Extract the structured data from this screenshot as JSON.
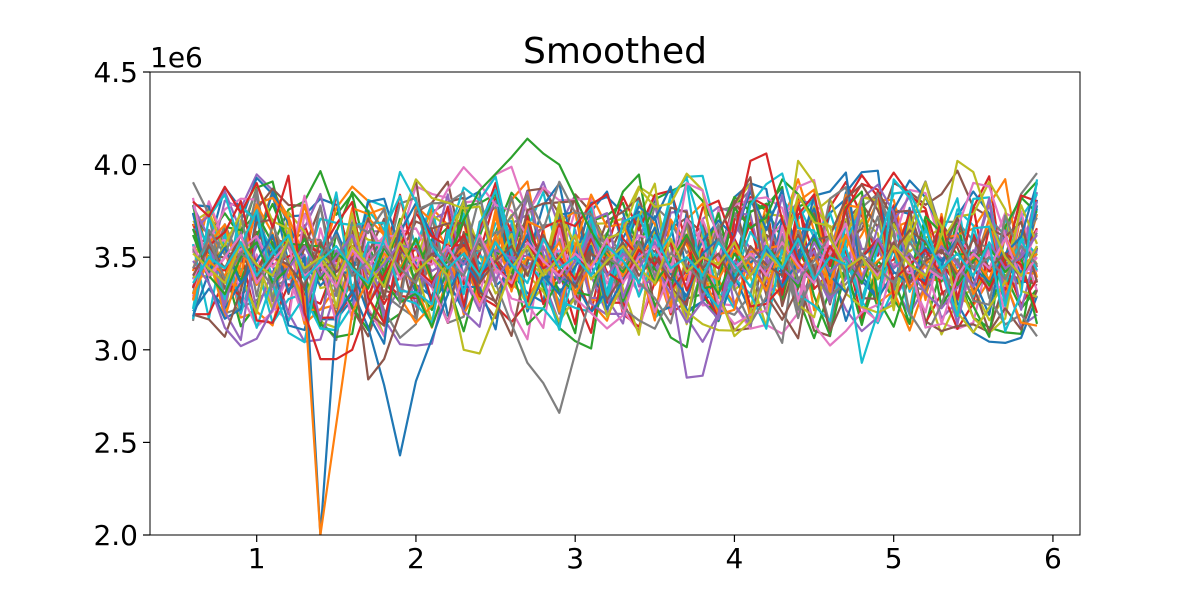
{
  "chart_data": {
    "type": "line",
    "title": "Smoothed",
    "xlabel": "",
    "ylabel": "",
    "y_offset_label": "1e6",
    "xlim": [
      0.33,
      6.17
    ],
    "ylim": [
      2.0,
      4.5
    ],
    "x_ticks": [
      1,
      2,
      3,
      4,
      5,
      6
    ],
    "x_tick_labels": [
      "1",
      "2",
      "3",
      "4",
      "5",
      "6"
    ],
    "y_ticks": [
      2.0,
      2.5,
      3.0,
      3.5,
      4.0,
      4.5
    ],
    "y_tick_labels": [
      "2.0",
      "2.5",
      "3.0",
      "3.5",
      "4.0",
      "4.5"
    ],
    "grid": false,
    "legend": "none",
    "colors": [
      "#1f77b4",
      "#ff7f0e",
      "#2ca02c",
      "#d62728",
      "#9467bd",
      "#8c564b",
      "#e377c2",
      "#7f7f7f",
      "#bcbd22",
      "#17becf"
    ],
    "x": [
      0.6,
      0.7,
      0.8,
      0.9,
      1.0,
      1.1,
      1.2,
      1.3,
      1.4,
      1.5,
      1.6,
      1.7,
      1.8,
      1.9,
      2.0,
      2.1,
      2.2,
      2.3,
      2.4,
      2.5,
      2.6,
      2.7,
      2.8,
      2.9,
      3.0,
      3.1,
      3.2,
      3.3,
      3.4,
      3.5,
      3.6,
      3.7,
      3.8,
      3.9,
      4.0,
      4.1,
      4.2,
      4.3,
      4.4,
      4.5,
      4.6,
      4.7,
      4.8,
      4.9,
      5.0,
      5.1,
      5.2,
      5.3,
      5.4,
      5.5,
      5.6,
      5.7,
      5.8,
      5.9
    ],
    "series_count": 50,
    "band": {
      "center": 3.5,
      "halfwidth": 0.38
    },
    "series": [
      {
        "values": [
          3.18,
          3.42,
          3.55,
          3.36,
          3.48,
          3.62,
          3.31,
          3.5,
          2.0,
          3.18,
          3.32,
          3.12,
          2.81,
          2.43,
          2.83,
          3.06,
          3.3,
          3.48,
          3.36,
          3.58,
          3.44,
          3.62,
          3.4,
          3.3,
          3.45,
          3.56,
          3.22,
          3.38,
          3.5,
          3.66,
          3.41,
          3.29,
          3.52,
          3.6,
          3.38,
          3.47,
          3.55,
          3.34,
          3.48,
          3.62,
          3.4,
          3.31,
          3.5,
          3.58,
          3.42,
          3.36,
          3.55,
          3.48,
          3.6,
          3.44,
          3.37,
          3.52,
          3.61,
          3.9
        ]
      },
      {
        "values": [
          3.3,
          3.48,
          3.4,
          3.58,
          3.35,
          3.5,
          3.44,
          3.28,
          2.0,
          2.6,
          3.2,
          3.38,
          3.52,
          3.44,
          3.6,
          3.36,
          3.48,
          3.55,
          3.4,
          3.62,
          3.34,
          3.5,
          3.45,
          3.58,
          3.3,
          3.46,
          3.52,
          3.4,
          3.56,
          3.35,
          3.48,
          3.6,
          3.42,
          3.38,
          3.54,
          3.46,
          3.32,
          3.58,
          3.44,
          3.5,
          3.36,
          3.62,
          3.4,
          3.48,
          3.55,
          3.33,
          3.46,
          3.58,
          3.42,
          3.5,
          3.38,
          3.6,
          3.45,
          3.52
        ]
      },
      {
        "values": [
          3.62,
          3.4,
          3.3,
          3.5,
          3.58,
          3.36,
          3.44,
          3.6,
          3.38,
          3.52,
          3.46,
          3.33,
          3.55,
          3.42,
          3.6,
          3.38,
          3.48,
          3.7,
          3.86,
          3.95,
          4.04,
          4.14,
          4.06,
          4.0,
          3.82,
          3.64,
          3.5,
          3.42,
          3.58,
          3.36,
          3.48,
          3.62,
          3.44,
          3.3,
          3.52,
          3.4,
          3.56,
          3.46,
          3.34,
          3.6,
          3.42,
          3.5,
          3.36,
          3.58,
          3.44,
          3.52,
          3.4,
          3.62,
          3.35,
          3.48,
          3.56,
          3.42,
          3.5,
          3.14
        ]
      },
      {
        "values": [
          3.8,
          3.72,
          3.88,
          3.74,
          3.9,
          3.66,
          3.94,
          3.2,
          2.95,
          2.95,
          3.0,
          3.24,
          3.4,
          3.56,
          3.44,
          3.36,
          3.52,
          3.62,
          3.4,
          3.48,
          3.34,
          3.58,
          3.44,
          3.5,
          3.38,
          3.6,
          3.42,
          3.36,
          3.54,
          3.46,
          3.58,
          3.32,
          3.5,
          3.44,
          3.62,
          4.02,
          4.06,
          3.7,
          3.48,
          3.36,
          3.56,
          3.42,
          3.5,
          3.6,
          3.38,
          3.46,
          3.54,
          3.4,
          3.58,
          3.44,
          3.32,
          3.52,
          3.46,
          3.2
        ]
      },
      {
        "values": [
          3.48,
          3.36,
          3.12,
          3.02,
          3.06,
          3.22,
          3.44,
          3.56,
          3.4,
          3.5,
          3.62,
          3.38,
          3.46,
          3.58,
          3.42,
          3.34,
          3.54,
          3.46,
          3.6,
          3.38,
          3.5,
          3.44,
          3.56,
          3.36,
          3.48,
          3.62,
          3.4,
          3.52,
          3.44,
          3.58,
          3.36,
          2.85,
          2.86,
          3.2,
          3.48,
          3.4,
          3.56,
          3.44,
          3.36,
          3.58,
          3.42,
          3.5,
          3.38,
          3.6,
          3.44,
          3.52,
          3.4,
          3.56,
          3.46,
          3.34,
          3.58,
          3.44,
          3.5,
          3.62
        ]
      },
      {
        "values": [
          3.4,
          3.56,
          3.44,
          3.62,
          3.38,
          3.5,
          3.46,
          3.34,
          3.58,
          3.42,
          3.5,
          2.84,
          2.95,
          3.2,
          3.4,
          3.52,
          3.44,
          3.6,
          3.36,
          3.48,
          3.56,
          3.4,
          3.62,
          3.44,
          3.34,
          3.52,
          3.46,
          3.58,
          3.4,
          3.5,
          3.38,
          3.6,
          3.44,
          3.52,
          3.36,
          3.56,
          3.46,
          3.4,
          3.62,
          3.44,
          3.1,
          3.3,
          3.5,
          3.42,
          3.58,
          3.36,
          3.48,
          3.54,
          3.4,
          3.6,
          3.44,
          3.52,
          3.38,
          3.56
        ]
      },
      {
        "values": [
          3.56,
          3.4,
          3.5,
          3.62,
          3.36,
          3.48,
          3.58,
          3.4,
          3.46,
          3.34,
          3.54,
          3.44,
          3.6,
          3.38,
          3.5,
          3.46,
          3.56,
          3.4,
          3.62,
          3.44,
          3.36,
          3.58,
          3.48,
          3.4,
          3.52,
          3.44,
          3.6,
          3.36,
          3.5,
          3.56,
          3.42,
          3.9,
          3.86,
          3.6,
          3.44,
          3.52,
          3.4,
          3.58,
          3.46,
          3.36,
          3.62,
          3.44,
          3.5,
          3.4,
          3.56,
          3.48,
          3.12,
          3.14,
          3.4,
          3.52,
          3.44,
          3.6,
          3.38,
          3.5
        ]
      },
      {
        "values": [
          3.44,
          3.6,
          3.38,
          3.52,
          3.46,
          3.34,
          3.58,
          3.42,
          3.5,
          3.62,
          3.4,
          3.48,
          3.56,
          3.44,
          3.36,
          3.58,
          3.48,
          3.4,
          3.6,
          3.36,
          3.14,
          2.93,
          2.82,
          2.66,
          2.98,
          3.3,
          3.5,
          3.44,
          3.58,
          3.4,
          3.52,
          3.46,
          3.36,
          3.6,
          3.42,
          3.5,
          3.44,
          3.56,
          3.38,
          3.48,
          3.62,
          3.4,
          3.52,
          3.44,
          3.36,
          3.58,
          3.46,
          3.4,
          3.6,
          3.44,
          3.5,
          3.38,
          3.56,
          3.46
        ]
      },
      {
        "values": [
          3.52,
          3.44,
          3.36,
          3.58,
          3.46,
          3.4,
          3.6,
          3.44,
          3.5,
          3.38,
          3.56,
          3.46,
          3.34,
          3.58,
          3.42,
          3.5,
          3.4,
          3.0,
          2.98,
          3.2,
          3.44,
          3.56,
          3.4,
          3.5,
          3.62,
          3.38,
          3.48,
          3.56,
          3.44,
          3.36,
          3.6,
          3.42,
          3.5,
          3.46,
          3.58,
          3.4,
          3.52,
          3.44,
          4.02,
          3.9,
          3.6,
          3.44,
          3.5,
          3.38,
          3.56,
          3.46,
          3.4,
          3.62,
          4.02,
          3.96,
          3.7,
          3.5,
          3.4,
          3.56
        ]
      },
      {
        "values": [
          3.36,
          3.5,
          3.44,
          3.58,
          3.4,
          3.52,
          3.62,
          3.38,
          3.48,
          3.56,
          3.44,
          3.36,
          3.6,
          3.96,
          3.8,
          3.56,
          3.44,
          3.52,
          3.4,
          3.58,
          3.46,
          3.36,
          3.6,
          3.44,
          3.5,
          3.4,
          3.56,
          3.48,
          3.36,
          3.62,
          3.44,
          3.5,
          3.4,
          3.58,
          3.46,
          3.34,
          3.56,
          3.44,
          3.6,
          3.38,
          3.5,
          3.46,
          2.93,
          3.2,
          3.92,
          3.82,
          3.6,
          3.44,
          3.52,
          3.4,
          3.58,
          3.1,
          3.3,
          3.92
        ]
      }
    ]
  }
}
